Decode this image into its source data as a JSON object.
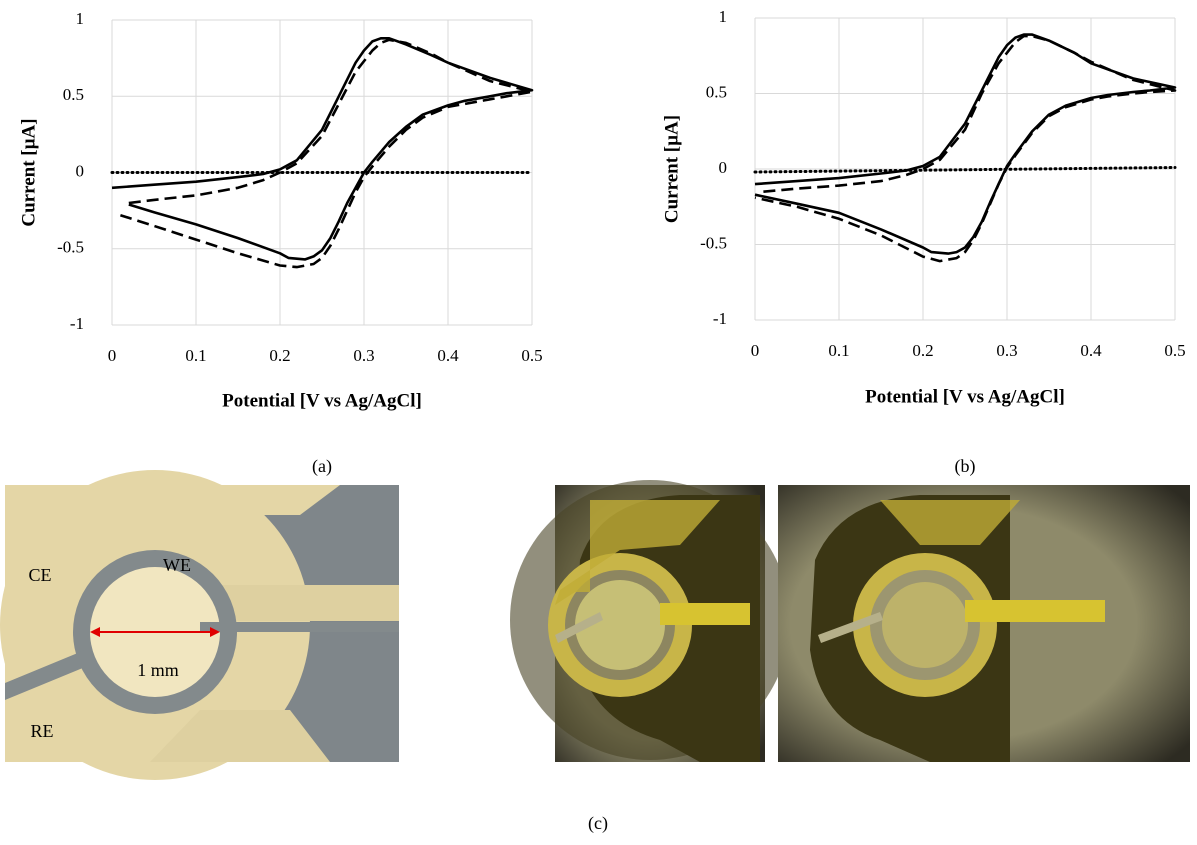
{
  "chart_data": [
    {
      "type": "line",
      "xlabel": "Potential [V vs Ag/AgCl]",
      "ylabel": "Current [µA]",
      "xlim": [
        0,
        0.5
      ],
      "ylim": [
        -1,
        1
      ],
      "xticks": [
        0,
        0.1,
        0.2,
        0.3,
        0.4,
        0.5
      ],
      "yticks": [
        -1,
        -0.5,
        0,
        0.5,
        1
      ],
      "grid": true,
      "series": [
        {
          "color": "#000000",
          "dash": "solid",
          "x": [
            0,
            0.05,
            0.1,
            0.15,
            0.18,
            0.2,
            0.22,
            0.25,
            0.27,
            0.29,
            0.3,
            0.31,
            0.32,
            0.33,
            0.35,
            0.38,
            0.4,
            0.45,
            0.5,
            0.47,
            0.45,
            0.42,
            0.4,
            0.37,
            0.35,
            0.33,
            0.31,
            0.3,
            0.29,
            0.28,
            0.27,
            0.26,
            0.25,
            0.24,
            0.23,
            0.21,
            0.2,
            0.15,
            0.1,
            0.05,
            0.02
          ],
          "values": [
            -0.1,
            -0.08,
            -0.06,
            -0.03,
            -0.01,
            0.02,
            0.08,
            0.28,
            0.5,
            0.72,
            0.8,
            0.86,
            0.88,
            0.88,
            0.84,
            0.77,
            0.72,
            0.62,
            0.54,
            0.52,
            0.5,
            0.47,
            0.44,
            0.38,
            0.3,
            0.2,
            0.07,
            0,
            -0.1,
            -0.2,
            -0.32,
            -0.43,
            -0.51,
            -0.55,
            -0.57,
            -0.56,
            -0.53,
            -0.43,
            -0.34,
            -0.26,
            -0.21
          ]
        },
        {
          "color": "#000000",
          "dash": "dashed",
          "x": [
            0.02,
            0.05,
            0.1,
            0.15,
            0.18,
            0.2,
            0.22,
            0.25,
            0.27,
            0.29,
            0.31,
            0.32,
            0.33,
            0.35,
            0.38,
            0.4,
            0.45,
            0.5,
            0.47,
            0.45,
            0.42,
            0.4,
            0.37,
            0.35,
            0.33,
            0.31,
            0.3,
            0.29,
            0.28,
            0.27,
            0.26,
            0.25,
            0.24,
            0.22,
            0.2,
            0.15,
            0.1,
            0.05,
            0.01
          ],
          "values": [
            -0.2,
            -0.18,
            -0.15,
            -0.1,
            -0.05,
            0,
            0.06,
            0.24,
            0.45,
            0.66,
            0.8,
            0.85,
            0.87,
            0.85,
            0.78,
            0.72,
            0.6,
            0.53,
            0.5,
            0.48,
            0.45,
            0.43,
            0.36,
            0.28,
            0.17,
            0.04,
            -0.03,
            -0.13,
            -0.25,
            -0.37,
            -0.48,
            -0.56,
            -0.6,
            -0.62,
            -0.61,
            -0.53,
            -0.44,
            -0.35,
            -0.28
          ]
        },
        {
          "color": "#000000",
          "dash": "dotted",
          "x": [
            0,
            0.5
          ],
          "values": [
            0,
            0
          ]
        }
      ]
    },
    {
      "type": "line",
      "xlabel": "Potential [V vs Ag/AgCl]",
      "ylabel": "Current [µA]",
      "xlim": [
        0,
        0.5
      ],
      "ylim": [
        -1,
        1
      ],
      "xticks": [
        0,
        0.1,
        0.2,
        0.3,
        0.4,
        0.5
      ],
      "yticks": [
        -1,
        -0.5,
        0,
        0.5,
        1
      ],
      "grid": true,
      "series": [
        {
          "color": "#000000",
          "dash": "solid",
          "x": [
            0,
            0.05,
            0.1,
            0.15,
            0.18,
            0.2,
            0.22,
            0.25,
            0.27,
            0.29,
            0.3,
            0.31,
            0.32,
            0.33,
            0.35,
            0.38,
            0.4,
            0.45,
            0.5,
            0.47,
            0.45,
            0.42,
            0.4,
            0.37,
            0.35,
            0.33,
            0.31,
            0.3,
            0.29,
            0.28,
            0.27,
            0.26,
            0.25,
            0.24,
            0.23,
            0.21,
            0.2,
            0.15,
            0.1,
            0.05,
            0
          ],
          "values": [
            -0.1,
            -0.08,
            -0.06,
            -0.03,
            -0.01,
            0.02,
            0.08,
            0.3,
            0.52,
            0.74,
            0.82,
            0.87,
            0.89,
            0.89,
            0.85,
            0.77,
            0.7,
            0.6,
            0.54,
            0.52,
            0.51,
            0.49,
            0.47,
            0.42,
            0.36,
            0.25,
            0.1,
            0.02,
            -0.1,
            -0.22,
            -0.35,
            -0.45,
            -0.52,
            -0.55,
            -0.56,
            -0.55,
            -0.52,
            -0.4,
            -0.29,
            -0.23,
            -0.17
          ]
        },
        {
          "color": "#000000",
          "dash": "dashed",
          "x": [
            0.01,
            0.05,
            0.1,
            0.15,
            0.18,
            0.2,
            0.22,
            0.25,
            0.27,
            0.29,
            0.31,
            0.32,
            0.33,
            0.35,
            0.38,
            0.4,
            0.45,
            0.5,
            0.47,
            0.45,
            0.42,
            0.4,
            0.37,
            0.35,
            0.33,
            0.31,
            0.3,
            0.29,
            0.28,
            0.27,
            0.26,
            0.25,
            0.24,
            0.22,
            0.2,
            0.15,
            0.1,
            0.05,
            0
          ],
          "values": [
            -0.15,
            -0.13,
            -0.11,
            -0.08,
            -0.04,
            0,
            0.06,
            0.26,
            0.5,
            0.7,
            0.84,
            0.88,
            0.88,
            0.85,
            0.77,
            0.71,
            0.59,
            0.52,
            0.51,
            0.5,
            0.48,
            0.46,
            0.41,
            0.35,
            0.24,
            0.09,
            0.01,
            -0.1,
            -0.23,
            -0.36,
            -0.47,
            -0.55,
            -0.59,
            -0.61,
            -0.58,
            -0.44,
            -0.33,
            -0.25,
            -0.19
          ]
        },
        {
          "color": "#000000",
          "dash": "dotted",
          "x": [
            0,
            0.5
          ],
          "values": [
            -0.02,
            0.01
          ]
        }
      ]
    }
  ],
  "figure": {
    "captions": [
      "(a)",
      "(b)",
      "(c)"
    ],
    "photo_labels": [
      "CE",
      "WE",
      "RE",
      "1 mm"
    ]
  }
}
